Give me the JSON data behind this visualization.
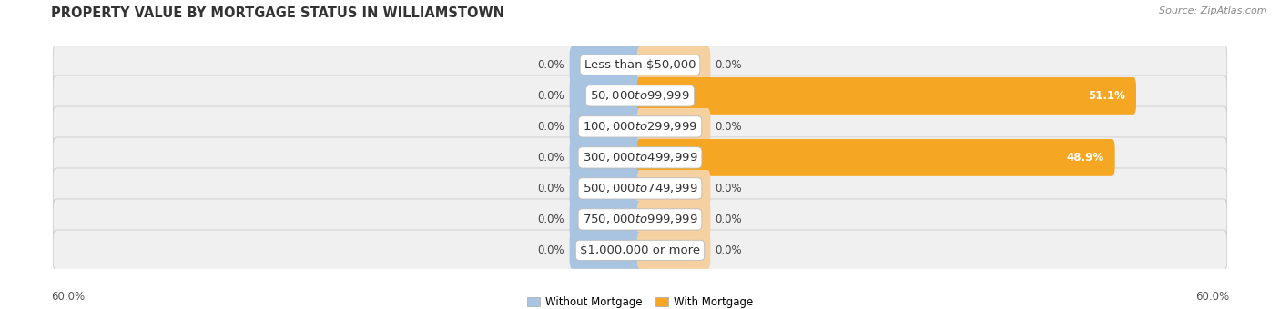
{
  "title": "PROPERTY VALUE BY MORTGAGE STATUS IN WILLIAMSTOWN",
  "source": "Source: ZipAtlas.com",
  "categories": [
    "Less than $50,000",
    "$50,000 to $99,999",
    "$100,000 to $299,999",
    "$300,000 to $499,999",
    "$500,000 to $749,999",
    "$750,000 to $999,999",
    "$1,000,000 or more"
  ],
  "without_mortgage": [
    0.0,
    0.0,
    0.0,
    0.0,
    0.0,
    0.0,
    0.0
  ],
  "with_mortgage": [
    0.0,
    51.1,
    0.0,
    48.9,
    0.0,
    0.0,
    0.0
  ],
  "without_mortgage_color": "#a8c4e0",
  "with_mortgage_color_full": "#f5a623",
  "with_mortgage_color_light": "#f5d0a0",
  "row_bg_color": "#f0f0f0",
  "row_border_color": "#cccccc",
  "xlim": 60.0,
  "min_bar_width": 7.0,
  "label_fontsize": 8.5,
  "category_fontsize": 9.5,
  "axis_label_fontsize": 8.5,
  "title_fontsize": 10.5,
  "source_fontsize": 8.0
}
